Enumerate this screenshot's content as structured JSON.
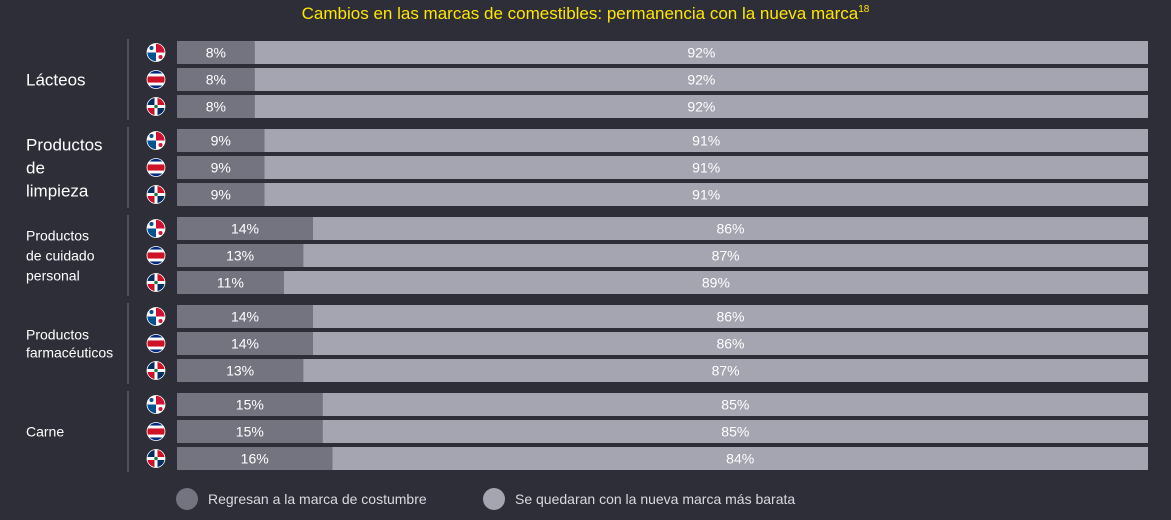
{
  "title": "Cambios en las marcas de comestibles: permanencia con la nueva marca",
  "title_sup": "18",
  "colors": {
    "background": "#2e2e38",
    "title": "#ffe600",
    "returned": "#747480",
    "stayed": "#a5a5b2",
    "text": "#ffffff",
    "divider": "#5a5a66"
  },
  "chart_data": {
    "type": "bar",
    "stacked": true,
    "orientation": "horizontal",
    "xlim": [
      0,
      100
    ],
    "unit": "%",
    "countries": [
      "Panamá",
      "Costa Rica",
      "República Dominicana"
    ],
    "legend": [
      "Regresan a la marca de costumbre",
      "Se quedaran con la nueva marca más barata"
    ],
    "groups": [
      {
        "category": "Lácteos",
        "rows": [
          {
            "country": "panama",
            "returned": 8,
            "stayed": 92,
            "returned_label": "8%",
            "stayed_label": "92%"
          },
          {
            "country": "costa-rica",
            "returned": 8,
            "stayed": 92,
            "returned_label": "8%",
            "stayed_label": "92%"
          },
          {
            "country": "dominican-republic",
            "returned": 8,
            "stayed": 92,
            "returned_label": "8%",
            "stayed_label": "92%"
          }
        ]
      },
      {
        "category": "Productos de limpieza",
        "rows": [
          {
            "country": "panama",
            "returned": 9,
            "stayed": 91,
            "returned_label": "9%",
            "stayed_label": "91%"
          },
          {
            "country": "costa-rica",
            "returned": 9,
            "stayed": 91,
            "returned_label": "9%",
            "stayed_label": "91%"
          },
          {
            "country": "dominican-republic",
            "returned": 9,
            "stayed": 91,
            "returned_label": "9%",
            "stayed_label": "91%"
          }
        ]
      },
      {
        "category": "Productos de cuidado personal",
        "rows": [
          {
            "country": "panama",
            "returned": 14,
            "stayed": 86,
            "returned_label": "14%",
            "stayed_label": "86%"
          },
          {
            "country": "costa-rica",
            "returned": 13,
            "stayed": 87,
            "returned_label": "13%",
            "stayed_label": "87%"
          },
          {
            "country": "dominican-republic",
            "returned": 11,
            "stayed": 89,
            "returned_label": "11%",
            "stayed_label": "89%"
          }
        ]
      },
      {
        "category": "Productos farmacéuticos",
        "rows": [
          {
            "country": "panama",
            "returned": 14,
            "stayed": 86,
            "returned_label": "14%",
            "stayed_label": "86%"
          },
          {
            "country": "costa-rica",
            "returned": 14,
            "stayed": 86,
            "returned_label": "14%",
            "stayed_label": "86%"
          },
          {
            "country": "dominican-republic",
            "returned": 13,
            "stayed": 87,
            "returned_label": "13%",
            "stayed_label": "87%"
          }
        ]
      },
      {
        "category": "Carne",
        "rows": [
          {
            "country": "panama",
            "returned": 15,
            "stayed": 85,
            "returned_label": "15%",
            "stayed_label": "85%"
          },
          {
            "country": "costa-rica",
            "returned": 15,
            "stayed": 85,
            "returned_label": "15%",
            "stayed_label": "85%"
          },
          {
            "country": "dominican-republic",
            "returned": 16,
            "stayed": 84,
            "returned_label": "16%",
            "stayed_label": "84%"
          }
        ]
      }
    ]
  }
}
